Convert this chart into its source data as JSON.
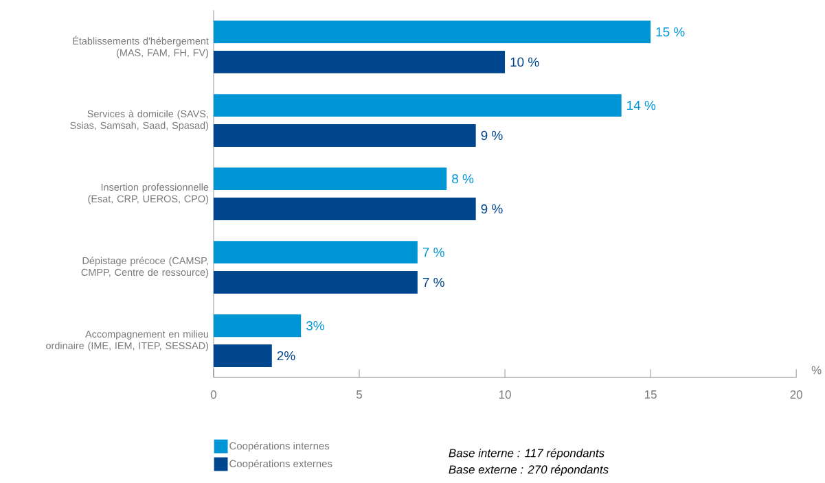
{
  "chart_data": {
    "type": "bar",
    "orientation": "horizontal",
    "xlabel": "%",
    "categories": [
      "Établissements d'hébergement (MAS, FAM, FH, FV)",
      "Services à domicile (SAVS, Ssias, Samsah, Saad, Spasad)",
      "Insertion professionnelle (Esat, CRP, UEROS, CPO)",
      "Dépistage précoce (CAMSP, CMPP, Centre de ressource)",
      "Accompagnement en milieu ordinaire (IME, IEM, ITEP, SESSAD)"
    ],
    "series": [
      {
        "name": "Coopérations internes",
        "color": "#0096d6",
        "values": [
          15,
          14,
          8,
          7,
          3
        ],
        "value_labels": [
          "15 %",
          "14 %",
          "8 %",
          "7 %",
          "3%"
        ]
      },
      {
        "name": "Coopérations externes",
        "color": "#00468e",
        "values": [
          10,
          9,
          9,
          7,
          2
        ],
        "value_labels": [
          "10 %",
          "9 %",
          "9 %",
          "7 %",
          "2%"
        ]
      }
    ],
    "xlim": [
      0,
      20
    ],
    "xticks": [
      0,
      5,
      10,
      15,
      20
    ],
    "grid": false,
    "legend": "bottom left",
    "annotations": [
      "Base interne : 117 répondants",
      "Base externe : 270 répondants"
    ]
  }
}
